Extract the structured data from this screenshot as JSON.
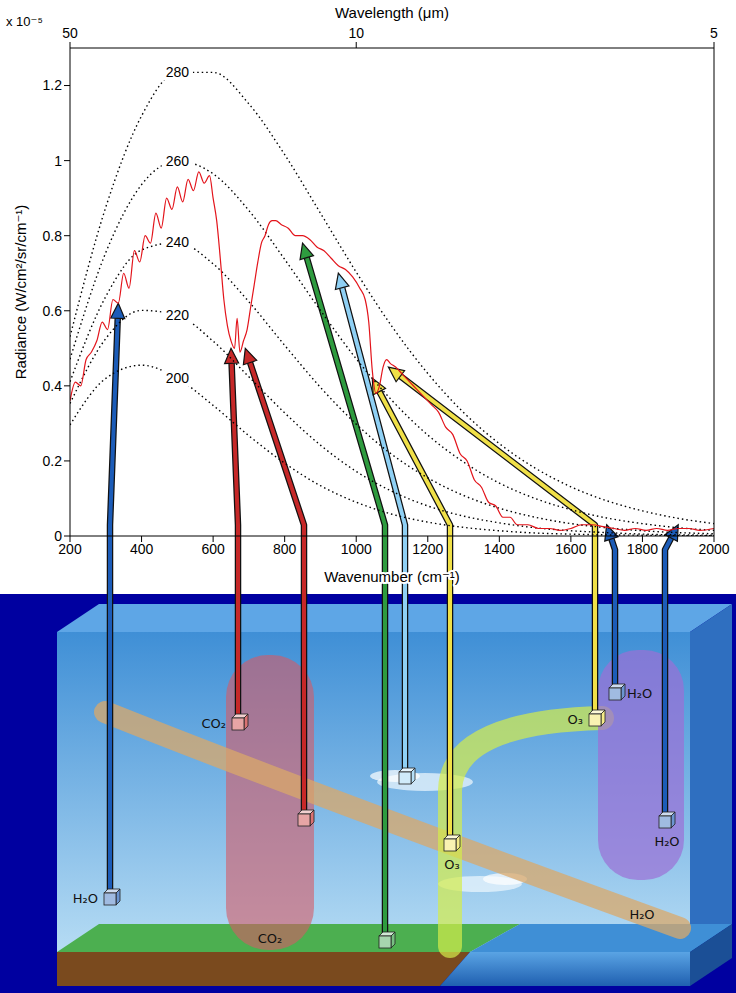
{
  "chart_data": {
    "type": "line",
    "x_label": "Wavenumber (cm⁻¹)",
    "y_label": "Radiance (W/cm²/sr/cm⁻¹)",
    "y_multiplier": "x 10⁻⁵",
    "x2_label": "Wavelength (μm)",
    "xlim": [
      200,
      2000
    ],
    "xticks": [
      200,
      400,
      600,
      800,
      1000,
      1200,
      1400,
      1600,
      1800,
      2000
    ],
    "x2lim": [
      200,
      2000
    ],
    "x2ticks": [
      {
        "value": 200,
        "label": "50"
      },
      {
        "value": 1000,
        "label": "10"
      },
      {
        "value": 2000,
        "label": "5"
      }
    ],
    "ylim": [
      0,
      1.3
    ],
    "yticks": [
      0,
      0.2,
      0.4,
      0.6,
      0.8,
      1,
      1.2
    ],
    "grid": false,
    "series": [
      {
        "name": "280",
        "color": "#000000",
        "line_style": "dotted",
        "x": [
          200,
          300,
          400,
          500,
          600,
          700,
          800,
          900,
          1000,
          1100,
          1200,
          1300,
          1400,
          1500,
          1600,
          1700,
          1800,
          1900,
          2000
        ],
        "values": [
          0.531,
          0.876,
          1.119,
          1.235,
          1.235,
          1.151,
          1.016,
          0.86,
          0.703,
          0.558,
          0.433,
          0.329,
          0.246,
          0.181,
          0.131,
          0.094,
          0.067,
          0.047,
          0.033
        ]
      },
      {
        "name": "260",
        "color": "#000000",
        "line_style": "dotted",
        "x": [
          200,
          300,
          400,
          500,
          600,
          700,
          800,
          900,
          1000,
          1100,
          1200,
          1300,
          1400,
          1500,
          1600,
          1700,
          1800,
          1900,
          2000
        ],
        "values": [
          0.471,
          0.755,
          0.936,
          0.999,
          0.965,
          0.867,
          0.737,
          0.601,
          0.472,
          0.361,
          0.269,
          0.197,
          0.141,
          0.1,
          0.07,
          0.048,
          0.033,
          0.022,
          0.015
        ]
      },
      {
        "name": "240",
        "color": "#000000",
        "line_style": "dotted",
        "x": [
          200,
          300,
          400,
          500,
          600,
          700,
          800,
          900,
          1000,
          1100,
          1200,
          1300,
          1400,
          1500,
          1600,
          1700,
          1800,
          1900,
          2000
        ],
        "values": [
          0.411,
          0.638,
          0.762,
          0.782,
          0.725,
          0.624,
          0.508,
          0.396,
          0.298,
          0.217,
          0.155,
          0.108,
          0.074,
          0.05,
          0.033,
          0.022,
          0.014,
          0.009,
          0.006
        ]
      },
      {
        "name": "220",
        "color": "#000000",
        "line_style": "dotted",
        "x": [
          200,
          300,
          400,
          500,
          600,
          700,
          800,
          900,
          1000,
          1100,
          1200,
          1300,
          1400,
          1500,
          1600,
          1700,
          1800,
          1900,
          2000
        ],
        "values": [
          0.353,
          0.526,
          0.601,
          0.588,
          0.519,
          0.424,
          0.328,
          0.242,
          0.172,
          0.119,
          0.08,
          0.053,
          0.035,
          0.022,
          0.014,
          0.009,
          0.005,
          0.003,
          0.002
        ]
      },
      {
        "name": "200",
        "color": "#000000",
        "line_style": "dotted",
        "x": [
          200,
          300,
          400,
          500,
          600,
          700,
          800,
          900,
          1000,
          1100,
          1200,
          1300,
          1400,
          1500,
          1600,
          1700,
          1800,
          1900,
          2000
        ],
        "values": [
          0.296,
          0.42,
          0.455,
          0.42,
          0.348,
          0.267,
          0.194,
          0.134,
          0.09,
          0.058,
          0.037,
          0.023,
          0.014,
          0.008,
          0.005,
          0.003,
          0.002,
          0.001,
          0.001
        ]
      },
      {
        "color": "#e3141b",
        "line_style": "solid",
        "x": [
          200,
          215,
          230,
          245,
          260,
          275,
          290,
          305,
          320,
          335,
          350,
          365,
          380,
          395,
          410,
          425,
          440,
          455,
          470,
          485,
          500,
          515,
          530,
          545,
          560,
          575,
          590,
          600,
          610,
          620,
          630,
          640,
          650,
          660,
          667,
          675,
          685,
          695,
          705,
          715,
          725,
          735,
          745,
          755,
          765,
          775,
          790,
          810,
          830,
          850,
          870,
          890,
          910,
          930,
          950,
          970,
          990,
          1010,
          1025,
          1035,
          1045,
          1055,
          1065,
          1075,
          1085,
          1095,
          1110,
          1130,
          1150,
          1170,
          1190,
          1210,
          1230,
          1250,
          1270,
          1290,
          1310,
          1330,
          1350,
          1370,
          1390,
          1410,
          1430,
          1450,
          1480,
          1510,
          1540,
          1570,
          1600,
          1630,
          1660,
          1690,
          1720,
          1750,
          1780,
          1810,
          1840,
          1870,
          1900,
          1930,
          1960,
          2000
        ],
        "values": [
          0.36,
          0.41,
          0.4,
          0.47,
          0.49,
          0.52,
          0.57,
          0.55,
          0.63,
          0.62,
          0.7,
          0.66,
          0.76,
          0.73,
          0.8,
          0.78,
          0.86,
          0.82,
          0.9,
          0.87,
          0.93,
          0.89,
          0.95,
          0.92,
          0.97,
          0.94,
          0.96,
          0.9,
          0.84,
          0.74,
          0.63,
          0.56,
          0.52,
          0.5,
          0.58,
          0.49,
          0.52,
          0.55,
          0.61,
          0.67,
          0.73,
          0.78,
          0.8,
          0.83,
          0.84,
          0.84,
          0.83,
          0.82,
          0.8,
          0.8,
          0.79,
          0.77,
          0.76,
          0.74,
          0.72,
          0.71,
          0.69,
          0.66,
          0.63,
          0.57,
          0.44,
          0.38,
          0.4,
          0.45,
          0.47,
          0.46,
          0.45,
          0.43,
          0.41,
          0.39,
          0.37,
          0.35,
          0.33,
          0.29,
          0.27,
          0.22,
          0.2,
          0.15,
          0.13,
          0.09,
          0.08,
          0.05,
          0.05,
          0.03,
          0.03,
          0.02,
          0.02,
          0.015,
          0.02,
          0.03,
          0.03,
          0.025,
          0.02,
          0.015,
          0.02,
          0.015,
          0.02,
          0.015,
          0.02,
          0.02,
          0.015,
          0.02
        ]
      }
    ]
  },
  "diagram": {
    "regions": [
      {
        "label": "CO₂",
        "color": "#d65a66"
      },
      {
        "label": "H₂O",
        "color": "#d9a86a"
      },
      {
        "color": "#d4ec4a"
      },
      {
        "color": "#9b6fd6"
      }
    ],
    "emitters": [
      {
        "label": "H₂O",
        "color": "#1c5cb8",
        "target": {
          "x": 335,
          "y": 0.62
        }
      },
      {
        "label": "CO₂",
        "color": "#c62828",
        "target": {
          "x": 650,
          "y": 0.5
        }
      },
      {
        "color": "#c62828",
        "target": {
          "x": 690,
          "y": 0.5
        }
      },
      {
        "color": "#2e9b3f",
        "target": {
          "x": 850,
          "y": 0.78
        }
      },
      {
        "color": "#8fd0f4",
        "target": {
          "x": 950,
          "y": 0.7
        }
      },
      {
        "label": "O₃",
        "color": "#f0e048",
        "target": {
          "x": 1045,
          "y": 0.42
        }
      },
      {
        "label": "O₃",
        "color": "#f0e048",
        "target": {
          "x": 1090,
          "y": 0.45
        }
      },
      {
        "label": "H₂O",
        "color": "#1c5cb8",
        "target": {
          "x": 1700,
          "y": 0.03
        }
      },
      {
        "label": "H₂O",
        "color": "#1c5cb8",
        "target": {
          "x": 1900,
          "y": 0.03
        }
      }
    ]
  }
}
